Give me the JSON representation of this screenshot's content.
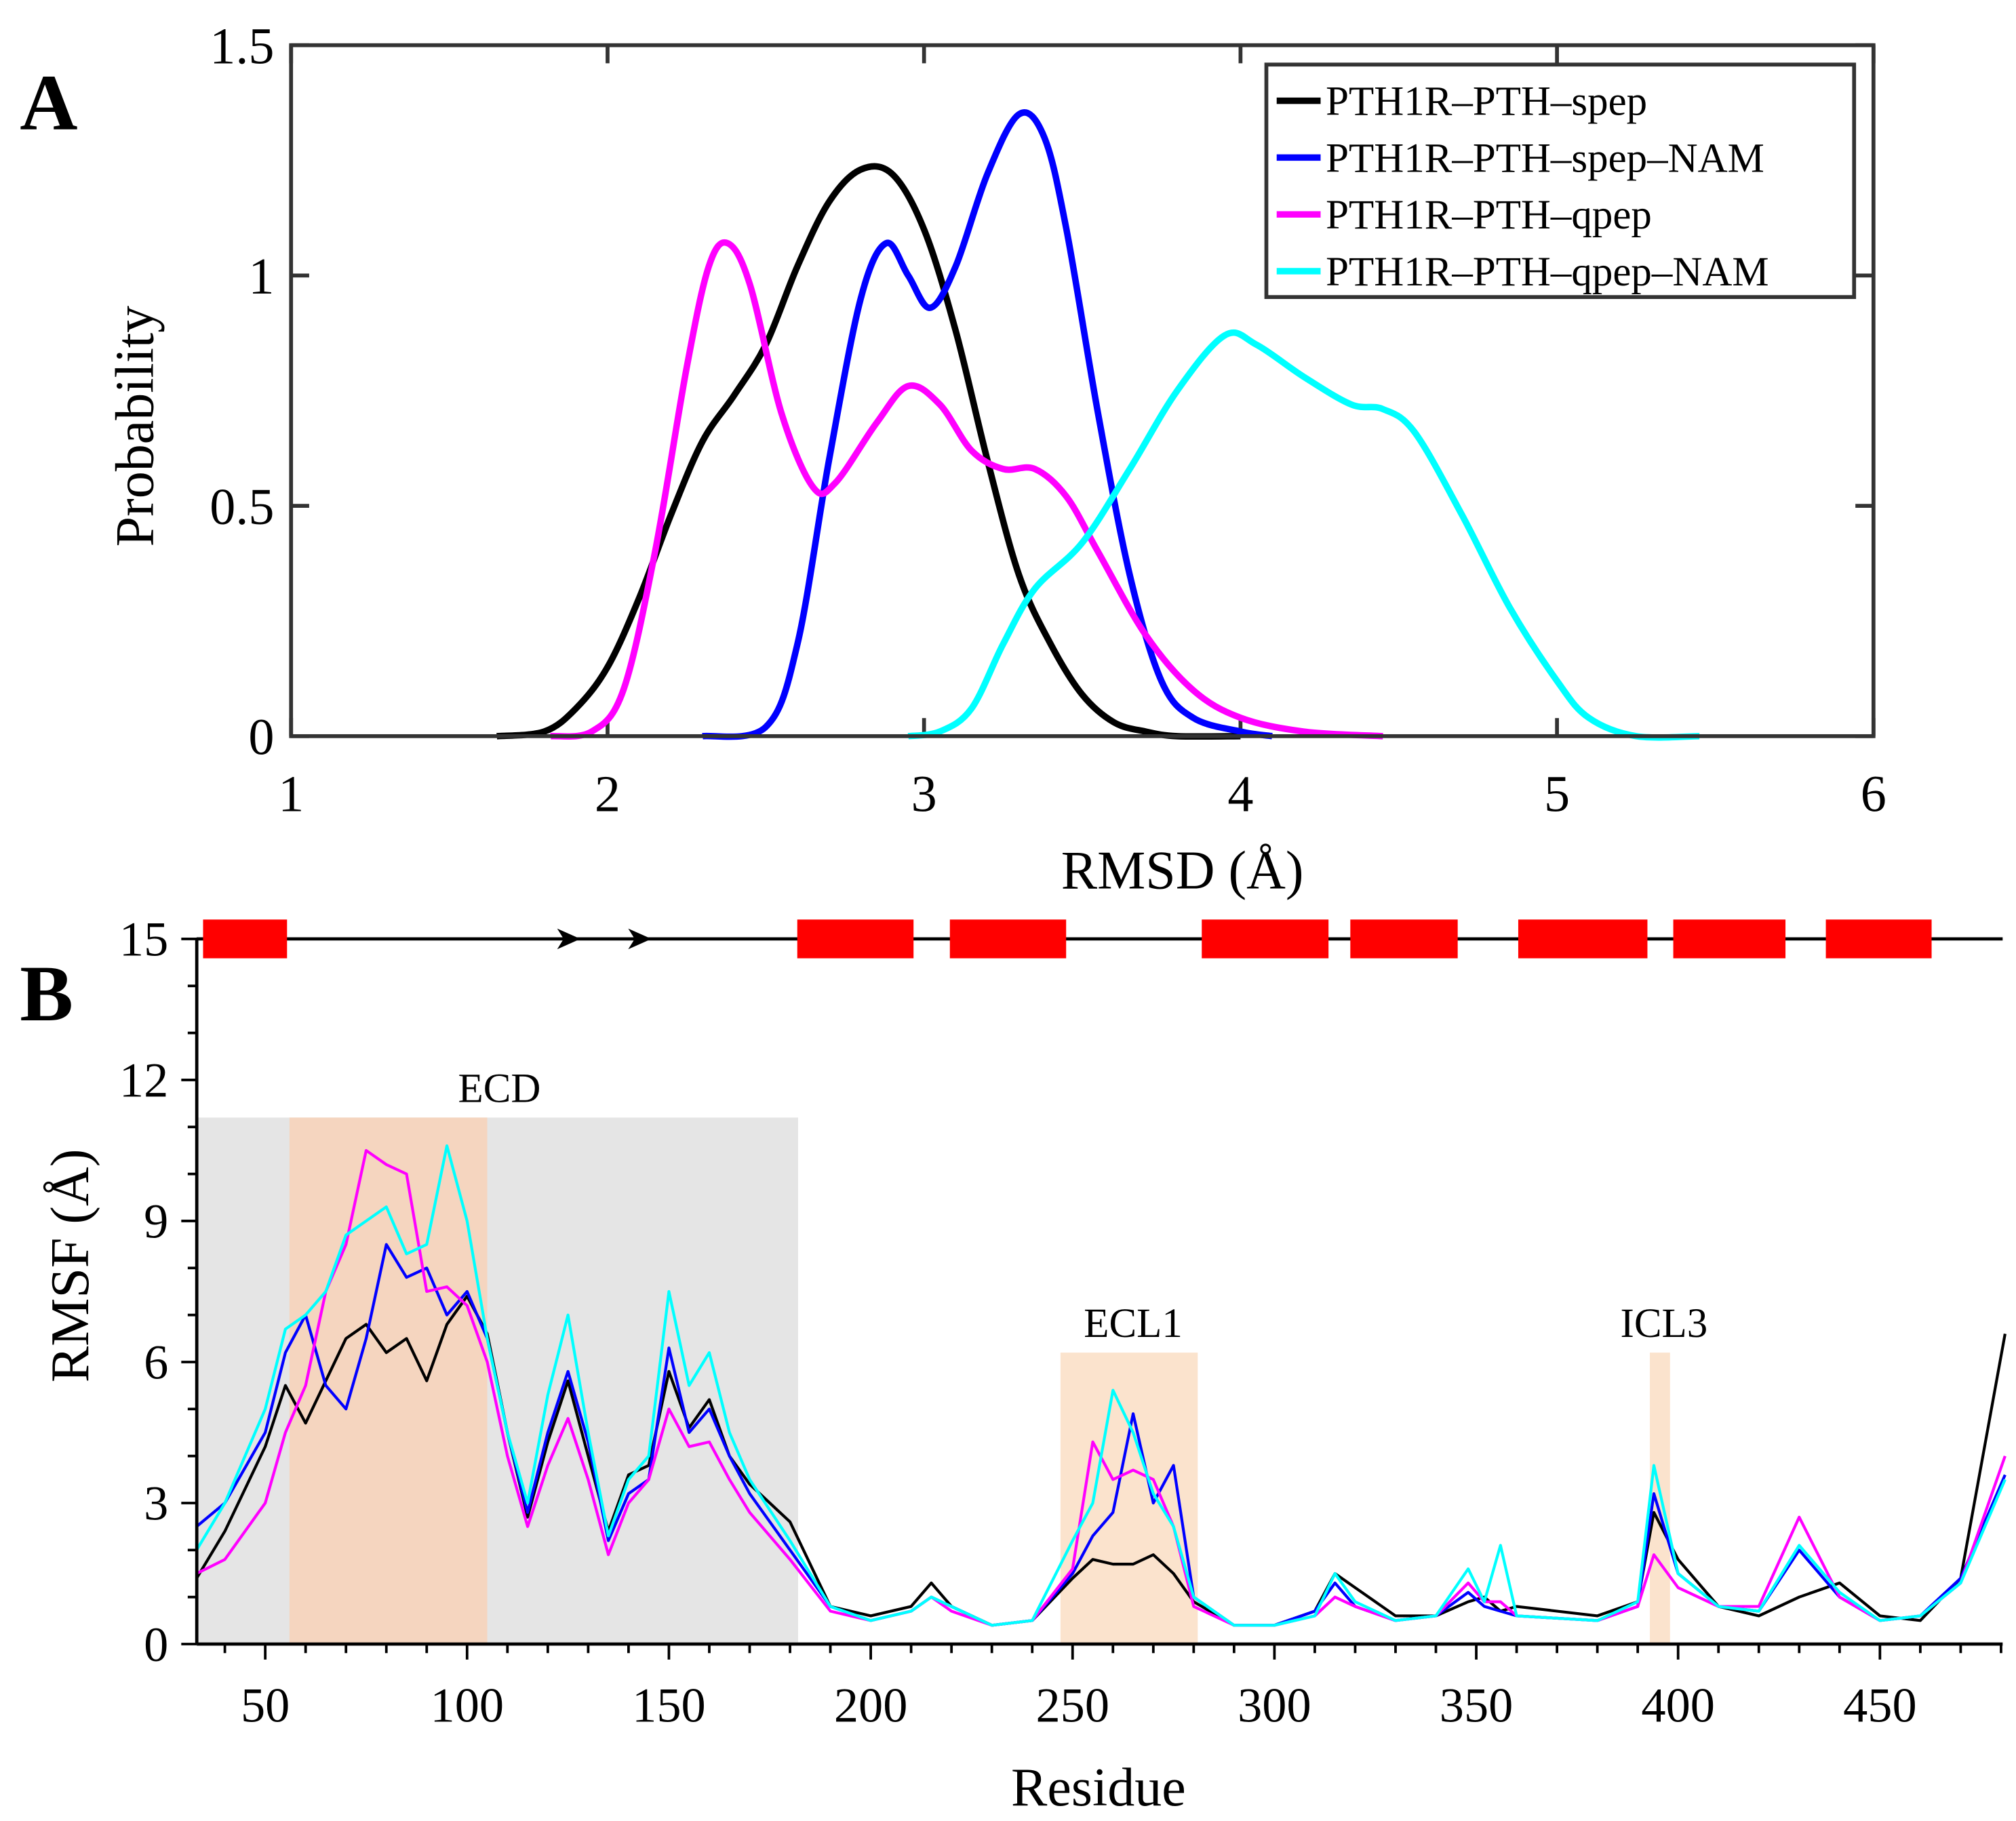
{
  "chart_data": [
    {
      "panel_label": "A",
      "type": "line",
      "xlabel": "RMSD (Å)",
      "ylabel": "Probability",
      "xlim": [
        1,
        6
      ],
      "ylim": [
        0,
        1.5
      ],
      "xticks": [
        "1",
        "2",
        "3",
        "4",
        "5",
        "6"
      ],
      "yticks": [
        "0",
        "0.5",
        "1",
        "1.5"
      ],
      "ytick_values": [
        0,
        0.5,
        1,
        1.5
      ],
      "legend_position": "top-right",
      "series": [
        {
          "name": "PTH1R–PTH–spep",
          "color": "#000000",
          "x": [
            1.65,
            1.8,
            1.9,
            2.0,
            2.1,
            2.2,
            2.3,
            2.4,
            2.5,
            2.6,
            2.7,
            2.8,
            2.9,
            3.0,
            3.1,
            3.2,
            3.3,
            3.4,
            3.5,
            3.6,
            3.7,
            3.8,
            4.0
          ],
          "y": [
            0,
            0.01,
            0.06,
            0.15,
            0.3,
            0.48,
            0.64,
            0.74,
            0.85,
            1.02,
            1.16,
            1.23,
            1.22,
            1.1,
            0.88,
            0.6,
            0.35,
            0.2,
            0.09,
            0.03,
            0.01,
            0,
            0
          ]
        },
        {
          "name": "PTH1R–PTH–spep–NAM",
          "color": "#0000ff",
          "x": [
            2.3,
            2.5,
            2.6,
            2.7,
            2.8,
            2.88,
            2.95,
            3.02,
            3.1,
            3.2,
            3.3,
            3.38,
            3.45,
            3.55,
            3.65,
            3.75,
            3.85,
            4.0,
            4.1
          ],
          "y": [
            0,
            0.02,
            0.2,
            0.6,
            0.95,
            1.07,
            1.0,
            0.93,
            1.02,
            1.22,
            1.35,
            1.3,
            1.1,
            0.7,
            0.35,
            0.12,
            0.04,
            0.01,
            0
          ]
        },
        {
          "name": "PTH1R–PTH–qpep",
          "color": "#ff00ff",
          "x": [
            1.82,
            1.95,
            2.05,
            2.15,
            2.25,
            2.32,
            2.38,
            2.45,
            2.55,
            2.65,
            2.72,
            2.85,
            2.95,
            3.05,
            3.15,
            3.25,
            3.35,
            3.45,
            3.55,
            3.7,
            3.85,
            4.0,
            4.2,
            4.45
          ],
          "y": [
            0,
            0.01,
            0.1,
            0.4,
            0.8,
            1.02,
            1.07,
            0.98,
            0.7,
            0.54,
            0.55,
            0.68,
            0.76,
            0.72,
            0.62,
            0.58,
            0.58,
            0.52,
            0.4,
            0.22,
            0.1,
            0.04,
            0.01,
            0
          ]
        },
        {
          "name": "PTH1R–PTH–qpep–NAM",
          "color": "#00ffff",
          "x": [
            2.95,
            3.05,
            3.15,
            3.25,
            3.35,
            3.5,
            3.65,
            3.8,
            3.95,
            4.05,
            4.2,
            4.35,
            4.45,
            4.55,
            4.7,
            4.85,
            5.0,
            5.1,
            5.25,
            5.45
          ],
          "y": [
            0,
            0.01,
            0.06,
            0.2,
            0.32,
            0.42,
            0.58,
            0.75,
            0.87,
            0.85,
            0.78,
            0.72,
            0.71,
            0.66,
            0.48,
            0.28,
            0.12,
            0.04,
            0,
            0
          ]
        }
      ]
    },
    {
      "panel_label": "B",
      "type": "line",
      "xlabel": "Residue",
      "ylabel": "RMSF (Å)",
      "xlim": [
        33,
        481
      ],
      "ylim": [
        0,
        15
      ],
      "xticks": [
        "50",
        "100",
        "150",
        "200",
        "250",
        "300",
        "350",
        "400",
        "450"
      ],
      "xtick_values": [
        50,
        100,
        150,
        200,
        250,
        300,
        350,
        400,
        450
      ],
      "yticks": [
        "0",
        "3",
        "6",
        "9",
        "12",
        "15"
      ],
      "ytick_values": [
        0,
        3,
        6,
        9,
        12,
        15
      ],
      "regions": [
        {
          "label": "ECD",
          "start": 33,
          "end": 182,
          "height": 11.2,
          "color": "#e5e5e5",
          "inner": {
            "start": 56,
            "end": 105,
            "color": "#f5d5bf"
          }
        },
        {
          "label": "ECL1",
          "start": 247,
          "end": 281,
          "height": 6.2,
          "color": "#fbe3cd"
        },
        {
          "label": "ICL3",
          "start": 393,
          "end": 398,
          "height": 6.2,
          "color": "#fbe3cd"
        }
      ],
      "secondary_structure": {
        "helices": [
          [
            34.6,
            55.4
          ],
          [
            181.8,
            210.6
          ],
          [
            219.6,
            248.4
          ],
          [
            282,
            313.4
          ],
          [
            318.8,
            345.4
          ],
          [
            360.4,
            392.4
          ],
          [
            398.8,
            426.6
          ],
          [
            436.6,
            462.8
          ]
        ],
        "strands": [
          126.8,
          144.4
        ],
        "helix_color": "#ff0000"
      },
      "x": [
        33,
        40,
        50,
        55,
        60,
        65,
        70,
        75,
        80,
        85,
        90,
        95,
        100,
        105,
        110,
        115,
        120,
        125,
        130,
        135,
        140,
        145,
        150,
        155,
        160,
        165,
        170,
        180,
        190,
        200,
        210,
        215,
        220,
        230,
        240,
        250,
        255,
        260,
        265,
        270,
        275,
        280,
        290,
        300,
        310,
        315,
        320,
        330,
        340,
        348,
        352,
        356,
        360,
        380,
        390,
        394,
        400,
        410,
        420,
        430,
        440,
        450,
        460,
        470,
        481
      ],
      "series": [
        {
          "name": "PTH1R–PTH–spep",
          "color": "#000000",
          "y": [
            1.4,
            2.4,
            4.2,
            5.5,
            4.7,
            5.6,
            6.5,
            6.8,
            6.2,
            6.5,
            5.6,
            6.8,
            7.4,
            6.6,
            4.5,
            2.7,
            4.3,
            5.6,
            4.0,
            2.4,
            3.6,
            3.8,
            5.8,
            4.6,
            5.2,
            4.0,
            3.4,
            2.6,
            0.8,
            0.6,
            0.8,
            1.3,
            0.8,
            0.4,
            0.5,
            1.4,
            1.8,
            1.7,
            1.7,
            1.9,
            1.5,
            0.9,
            0.4,
            0.4,
            0.7,
            1.5,
            1.2,
            0.6,
            0.6,
            0.9,
            1.0,
            0.7,
            0.8,
            0.6,
            0.9,
            2.8,
            1.8,
            0.8,
            0.6,
            1.0,
            1.3,
            0.6,
            0.5,
            1.4,
            6.6
          ]
        },
        {
          "name": "PTH1R–PTH–spep–NAM",
          "color": "#0000ff",
          "y": [
            2.5,
            3.0,
            4.5,
            6.2,
            7.0,
            5.5,
            5.0,
            6.5,
            8.5,
            7.8,
            8.0,
            7.0,
            7.5,
            6.5,
            4.5,
            2.8,
            4.5,
            5.8,
            4.3,
            2.2,
            3.2,
            3.5,
            6.3,
            4.5,
            5.0,
            4.0,
            3.2,
            2.0,
            0.8,
            0.5,
            0.7,
            1.0,
            0.8,
            0.4,
            0.5,
            1.5,
            2.3,
            2.8,
            4.9,
            3.0,
            3.8,
            1.0,
            0.4,
            0.4,
            0.7,
            1.3,
            0.8,
            0.5,
            0.6,
            1.1,
            0.8,
            0.7,
            0.6,
            0.5,
            0.8,
            3.2,
            1.5,
            0.8,
            0.7,
            2.0,
            1.0,
            0.5,
            0.6,
            1.4,
            3.6
          ]
        },
        {
          "name": "PTH1R–PTH–qpep",
          "color": "#ff00ff",
          "y": [
            1.5,
            1.8,
            3.0,
            4.5,
            5.5,
            7.5,
            8.5,
            10.5,
            10.2,
            10.0,
            7.5,
            7.6,
            7.2,
            6.0,
            4.0,
            2.5,
            3.8,
            4.8,
            3.5,
            1.9,
            3.0,
            3.5,
            5.0,
            4.2,
            4.3,
            3.5,
            2.8,
            1.8,
            0.7,
            0.5,
            0.7,
            1.0,
            0.7,
            0.4,
            0.5,
            1.6,
            4.3,
            3.5,
            3.7,
            3.5,
            2.5,
            0.8,
            0.4,
            0.4,
            0.6,
            1.0,
            0.8,
            0.5,
            0.6,
            1.3,
            0.9,
            0.9,
            0.6,
            0.5,
            0.8,
            1.9,
            1.2,
            0.8,
            0.8,
            2.7,
            1.0,
            0.5,
            0.6,
            1.3,
            4.0
          ]
        },
        {
          "name": "PTH1R–PTH–qpep–NAM",
          "color": "#00ffff",
          "y": [
            2.0,
            3.0,
            5.0,
            6.7,
            7.0,
            7.5,
            8.7,
            9.0,
            9.3,
            8.3,
            8.5,
            10.6,
            9.0,
            6.5,
            4.5,
            3.0,
            5.3,
            7.0,
            4.5,
            2.3,
            3.5,
            4.0,
            7.5,
            5.5,
            6.2,
            4.5,
            3.5,
            2.2,
            0.8,
            0.5,
            0.7,
            1.0,
            0.8,
            0.4,
            0.5,
            2.2,
            3.0,
            5.4,
            4.5,
            3.2,
            2.5,
            1.0,
            0.4,
            0.4,
            0.6,
            1.5,
            0.9,
            0.5,
            0.6,
            1.6,
            0.9,
            2.1,
            0.6,
            0.5,
            0.9,
            3.8,
            1.5,
            0.8,
            0.7,
            2.1,
            1.1,
            0.5,
            0.6,
            1.3,
            3.5
          ]
        }
      ]
    }
  ]
}
